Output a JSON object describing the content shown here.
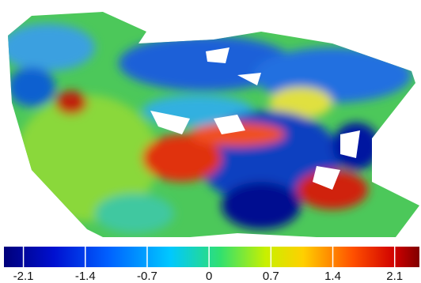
{
  "chart_data": {
    "type": "colorbar",
    "clim": [
      -2.32,
      2.38
    ],
    "ticks": [
      -2.1,
      -1.4,
      -0.7,
      0,
      0.7,
      1.4,
      2.1
    ]
  }
}
